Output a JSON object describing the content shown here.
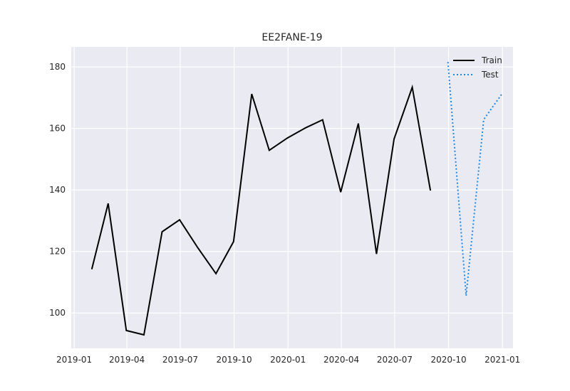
{
  "chart_data": {
    "type": "line",
    "title": "EE2FANE-19",
    "xlabel": "",
    "ylabel": "",
    "x_axis_type": "date",
    "xlim": [
      "2018-12-27",
      "2021-01-19"
    ],
    "ylim": [
      88.5,
      186.5
    ],
    "x_ticks": [
      "2019-01",
      "2019-04",
      "2019-07",
      "2019-10",
      "2020-01",
      "2020-04",
      "2020-07",
      "2020-10",
      "2021-01"
    ],
    "y_ticks": [
      100,
      120,
      140,
      160,
      180
    ],
    "grid": true,
    "legend_position": "top-right",
    "series": [
      {
        "name": "Train",
        "color": "#000000",
        "style": "solid",
        "x": [
          "2019-01-31",
          "2019-02-28",
          "2019-03-31",
          "2019-04-30",
          "2019-05-31",
          "2019-06-30",
          "2019-07-31",
          "2019-08-31",
          "2019-09-30",
          "2019-10-31",
          "2019-11-30",
          "2019-12-31",
          "2020-01-31",
          "2020-02-29",
          "2020-03-31",
          "2020-04-30",
          "2020-05-31",
          "2020-06-30",
          "2020-07-31",
          "2020-08-31"
        ],
        "values": [
          114.2,
          135.6,
          94.3,
          92.9,
          126.4,
          130.3,
          121.2,
          112.8,
          123.2,
          171.2,
          152.9,
          156.9,
          160.2,
          162.8,
          139.3,
          161.6,
          119.2,
          156.6,
          173.4,
          139.8
        ]
      },
      {
        "name": "Test",
        "color": "#1e88e5",
        "style": "dotted",
        "x": [
          "2020-09-30",
          "2020-10-31",
          "2020-11-30",
          "2020-12-31"
        ],
        "values": [
          181.6,
          105.6,
          162.9,
          171.2
        ]
      }
    ]
  }
}
